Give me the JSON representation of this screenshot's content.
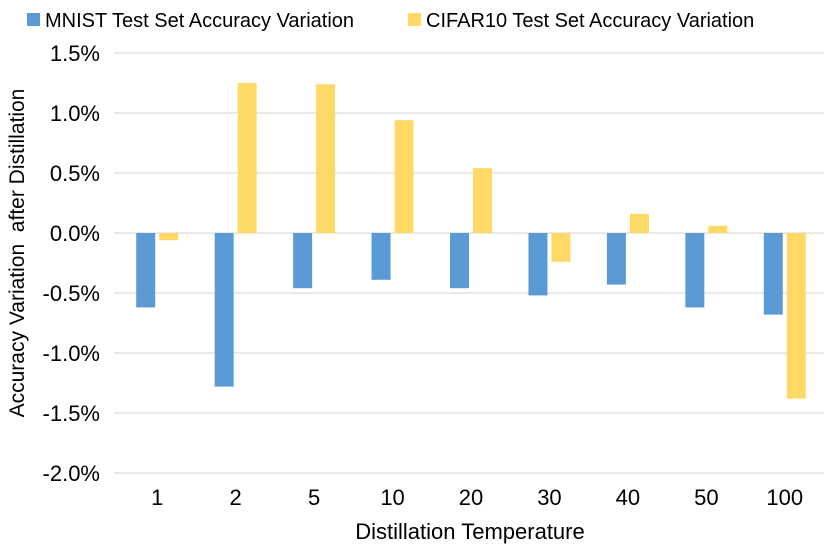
{
  "chart_data": {
    "type": "bar",
    "title": "",
    "categories": [
      "1",
      "2",
      "5",
      "10",
      "20",
      "30",
      "40",
      "50",
      "100"
    ],
    "series": [
      {
        "name": "MNIST Test Set Accuracy Variation",
        "color": "#5B9BD5",
        "values": [
          -0.62,
          -1.28,
          -0.46,
          -0.39,
          -0.46,
          -0.52,
          -0.43,
          -0.62,
          -0.68
        ]
      },
      {
        "name": "CIFAR10 Test Set Accuracy Variation",
        "color": "#FFD966",
        "values": [
          -0.06,
          1.25,
          1.24,
          0.94,
          0.54,
          -0.24,
          0.16,
          0.06,
          -1.38
        ]
      }
    ],
    "xlabel": "Distillation Temperature",
    "ylabel": "Accuracy Variation  after Distillation",
    "ylim": [
      -2.0,
      1.5
    ],
    "yticks": [
      {
        "label": "1.5%",
        "value": 1.5
      },
      {
        "label": "1.0%",
        "value": 1.0
      },
      {
        "label": "0.5%",
        "value": 0.5
      },
      {
        "label": "0.0%",
        "value": 0.0
      },
      {
        "label": "-0.5%",
        "value": -0.5
      },
      {
        "label": "-1.0%",
        "value": -1.0
      },
      {
        "label": "-1.5%",
        "value": -1.5
      },
      {
        "label": "-2.0%",
        "value": -2.0
      }
    ],
    "grid": true,
    "legend_position": "top",
    "colors": {
      "background": "#FFFFFF",
      "gridline": "#E9E9E9",
      "text": "#000000"
    }
  }
}
